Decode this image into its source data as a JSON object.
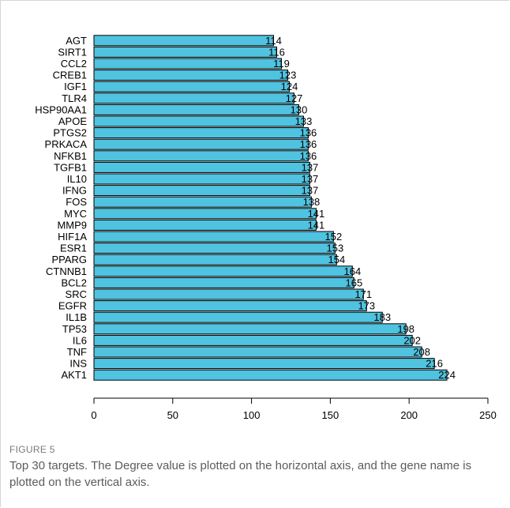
{
  "chart_data": {
    "type": "bar",
    "orientation": "horizontal",
    "bar_color": "#4fc3e0",
    "categories": [
      "AGT",
      "SIRT1",
      "CCL2",
      "CREB1",
      "IGF1",
      "TLR4",
      "HSP90AA1",
      "APOE",
      "PTGS2",
      "PRKACA",
      "NFKB1",
      "TGFB1",
      "IL10",
      "IFNG",
      "FOS",
      "MYC",
      "MMP9",
      "HIF1A",
      "ESR1",
      "PPARG",
      "CTNNB1",
      "BCL2",
      "SRC",
      "EGFR",
      "IL1B",
      "TP53",
      "IL6",
      "TNF",
      "INS",
      "AKT1"
    ],
    "values": [
      114,
      116,
      119,
      123,
      124,
      127,
      130,
      133,
      136,
      136,
      136,
      137,
      137,
      137,
      138,
      141,
      141,
      152,
      153,
      154,
      164,
      165,
      171,
      173,
      183,
      198,
      202,
      208,
      216,
      224
    ],
    "xlim": [
      0,
      250
    ],
    "xticks": [
      0,
      50,
      100,
      150,
      200,
      250
    ],
    "grid": false,
    "legend": "none"
  },
  "caption": {
    "label": "FIGURE 5",
    "text": "Top 30 targets. The Degree value is plotted on the horizontal axis, and the gene name is plotted on the vertical axis."
  }
}
